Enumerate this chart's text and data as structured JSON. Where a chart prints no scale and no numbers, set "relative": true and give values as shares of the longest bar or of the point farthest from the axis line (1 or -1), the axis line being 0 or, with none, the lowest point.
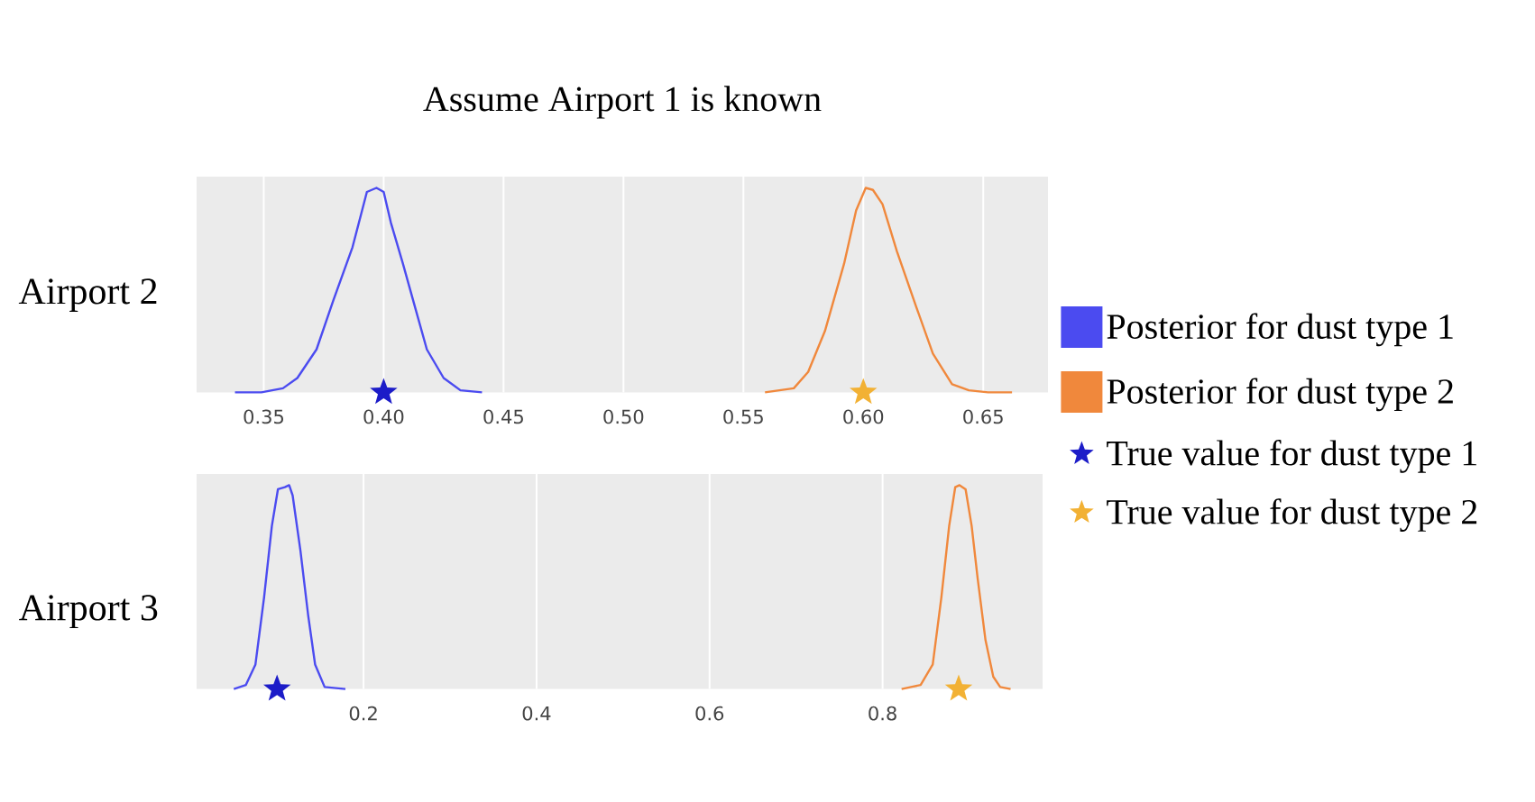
{
  "chart_data": [
    {
      "type": "line",
      "title": "Assume Airport 1 is known",
      "ylabel": "Airport 2",
      "relative": true,
      "xlim": [
        0.322,
        0.677
      ],
      "xticks": [
        0.35,
        {
          "value": 0.4,
          "label": "0.40"
        },
        0.45,
        {
          "value": 0.5,
          "label": "0.50"
        },
        0.55,
        {
          "value": 0.6,
          "label": "0.60"
        },
        0.65
      ],
      "grid": "x",
      "legend": "right",
      "series": [
        {
          "name": "Posterior for dust type 1",
          "color": "#4b4bf0",
          "x": [
            0.338,
            0.349,
            0.358,
            0.364,
            0.372,
            0.379,
            0.387,
            0.391,
            0.393,
            0.397,
            0.4,
            0.403,
            0.408,
            0.413,
            0.418,
            0.425,
            0.432,
            0.441
          ],
          "values": [
            0,
            0,
            0.02,
            0.07,
            0.21,
            0.45,
            0.71,
            0.89,
            0.98,
            1,
            0.98,
            0.83,
            0.63,
            0.42,
            0.21,
            0.07,
            0.01,
            0
          ]
        },
        {
          "name": "Posterior for dust type 2",
          "color": "#f0883c",
          "x": [
            0.559,
            0.571,
            0.577,
            0.584,
            0.592,
            0.597,
            0.601,
            0.604,
            0.608,
            0.614,
            0.622,
            0.629,
            0.637,
            0.644,
            0.652,
            0.662
          ],
          "values": [
            0,
            0.02,
            0.1,
            0.3,
            0.63,
            0.89,
            1,
            0.99,
            0.92,
            0.69,
            0.42,
            0.19,
            0.04,
            0.01,
            0,
            0
          ]
        },
        {
          "type": "scatter",
          "name": "True value for dust type 1",
          "color": "#1c1cc8",
          "marker": "star",
          "x": [
            0.4
          ],
          "values": [
            0
          ]
        },
        {
          "type": "scatter",
          "name": "True value for dust type 2",
          "color": "#f2b134",
          "marker": "star",
          "x": [
            0.6
          ],
          "values": [
            0
          ]
        }
      ]
    },
    {
      "type": "line",
      "ylabel": "Airport 3",
      "relative": true,
      "xlim": [
        0.007,
        0.985
      ],
      "xticks": [
        0.2,
        0.4,
        0.6,
        0.8
      ],
      "grid": "x",
      "series": [
        {
          "color": "#4b4bf0",
          "x": [
            0.05,
            0.064,
            0.075,
            0.085,
            0.094,
            0.101,
            0.109,
            0.114,
            0.118,
            0.127,
            0.136,
            0.144,
            0.155,
            0.179
          ],
          "values": [
            0,
            0.02,
            0.12,
            0.45,
            0.8,
            0.98,
            0.99,
            1,
            0.95,
            0.68,
            0.36,
            0.12,
            0.01,
            0
          ]
        },
        {
          "color": "#f0883c",
          "x": [
            0.822,
            0.844,
            0.858,
            0.868,
            0.877,
            0.884,
            0.889,
            0.896,
            0.903,
            0.91,
            0.919,
            0.928,
            0.936,
            0.948
          ],
          "values": [
            0,
            0.02,
            0.12,
            0.45,
            0.8,
            0.99,
            1,
            0.98,
            0.8,
            0.54,
            0.24,
            0.06,
            0.01,
            0
          ]
        },
        {
          "type": "scatter",
          "color": "#1c1cc8",
          "marker": "star",
          "x": [
            0.1
          ],
          "values": [
            0
          ]
        },
        {
          "type": "scatter",
          "color": "#f2b134",
          "marker": "star",
          "x": [
            0.888
          ],
          "values": [
            0
          ]
        }
      ]
    }
  ]
}
